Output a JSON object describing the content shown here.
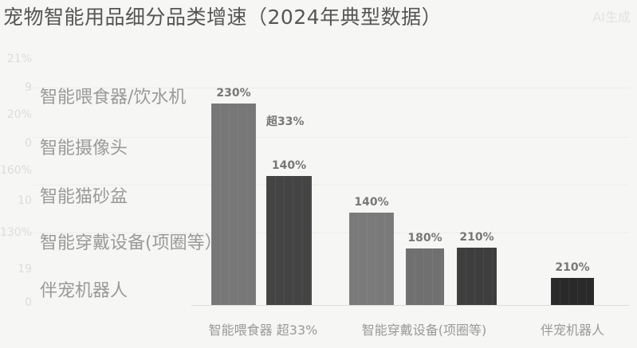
{
  "watermark": "AI生成",
  "chart_data": {
    "type": "bar",
    "title": "宠物智能用品细分品类增速（2024年典型数据）",
    "y_tick_labels": [
      "21%",
      "9",
      "20%",
      "0",
      "160%",
      "10",
      "130%",
      "19",
      "0"
    ],
    "legend_categories": [
      "智能喂食器/饮水机",
      "智能摄像头",
      "智能猫砂盆",
      "智能穿戴设备(项圈等）",
      "伴宠机器人"
    ],
    "x_tick_labels": [
      "智能喂食器 超33%",
      "智能穿戴设备(项圈等)",
      "伴宠机器人"
    ],
    "bars": [
      {
        "group": "智能喂食器 超33%",
        "label": "230%",
        "color": "#777777"
      },
      {
        "group": "智能喂食器 超33%",
        "label": "140%",
        "color": "#444444"
      },
      {
        "group": "智能穿戴设备(项圈等)",
        "label": "140%",
        "color": "#7a7a7a"
      },
      {
        "group": "智能穿戴设备(项圈等)",
        "label": "180%",
        "color": "#707070"
      },
      {
        "group": "智能穿戴设备(项圈等)",
        "label": "210%",
        "color": "#3e3e3e"
      },
      {
        "group": "伴宠机器人",
        "label": "210%",
        "color": "#2a2a2a"
      }
    ],
    "annotation": "超33%",
    "grid": true
  }
}
